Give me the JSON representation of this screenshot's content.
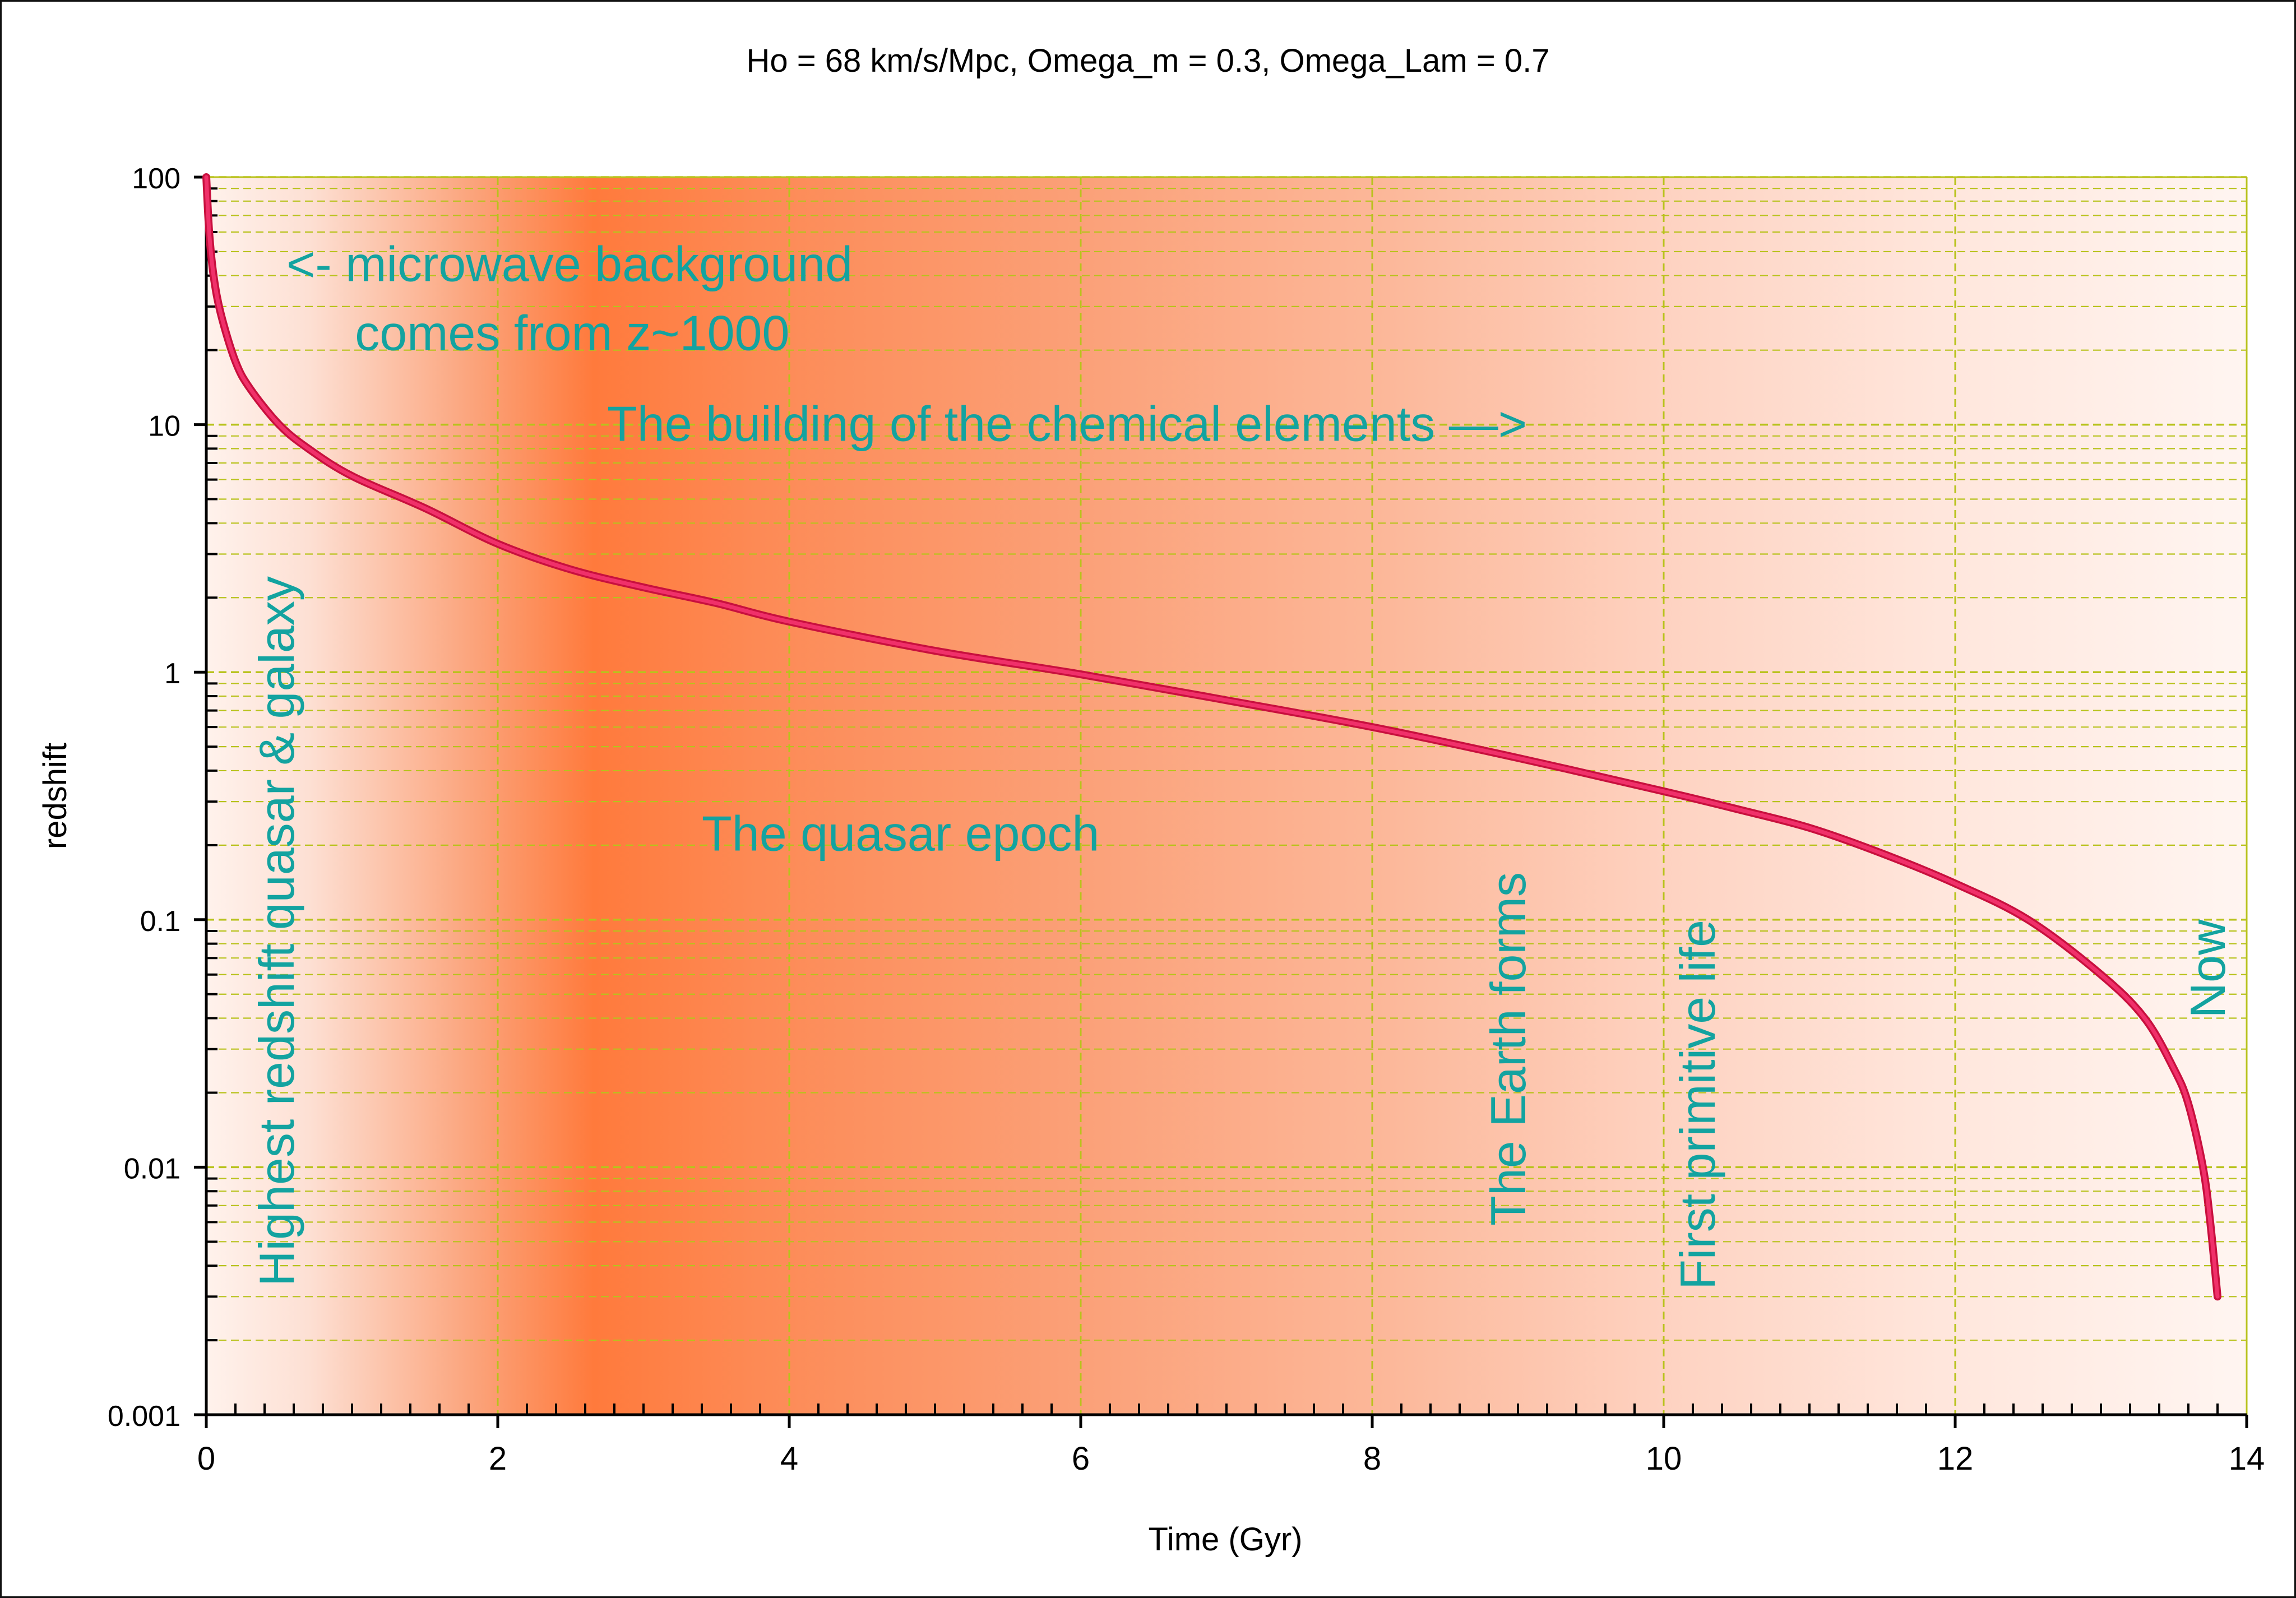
{
  "chart_data": {
    "type": "line",
    "title": "Ho = 68 km/s/Mpc, Omega_m = 0.3, Omega_Lam = 0.7",
    "xlabel": "Time (Gyr)",
    "ylabel": "redshift",
    "xlim": [
      0,
      14
    ],
    "ylim": [
      0.001,
      100
    ],
    "yscale": "log",
    "grid": true,
    "x_ticks": [
      "0",
      "2",
      "4",
      "6",
      "8",
      "10",
      "12",
      "14"
    ],
    "y_ticks": [
      "0.001",
      "0.01",
      "0.1",
      "1",
      "10",
      "100"
    ],
    "series": [
      {
        "color": "#e8174f",
        "points": [
          [
            0.0,
            100
          ],
          [
            0.02,
            60
          ],
          [
            0.05,
            40
          ],
          [
            0.1,
            28
          ],
          [
            0.2,
            18
          ],
          [
            0.3,
            14
          ],
          [
            0.5,
            10
          ],
          [
            0.7,
            8
          ],
          [
            1.0,
            6.2
          ],
          [
            1.5,
            4.6
          ],
          [
            2.0,
            3.3
          ],
          [
            2.5,
            2.6
          ],
          [
            3.0,
            2.2
          ],
          [
            3.5,
            1.9
          ],
          [
            4.0,
            1.6
          ],
          [
            5.0,
            1.22
          ],
          [
            6.0,
            0.98
          ],
          [
            7.0,
            0.77
          ],
          [
            8.0,
            0.6
          ],
          [
            9.0,
            0.45
          ],
          [
            10.0,
            0.33
          ],
          [
            10.5,
            0.28
          ],
          [
            11.0,
            0.235
          ],
          [
            11.5,
            0.185
          ],
          [
            12.0,
            0.14
          ],
          [
            12.5,
            0.1
          ],
          [
            13.0,
            0.06
          ],
          [
            13.3,
            0.04
          ],
          [
            13.5,
            0.025
          ],
          [
            13.6,
            0.018
          ],
          [
            13.7,
            0.01
          ],
          [
            13.75,
            0.006
          ],
          [
            13.8,
            0.003
          ]
        ]
      }
    ],
    "annotations": [
      {
        "text": "<- microwave background",
        "x": 0.55,
        "y": 38
      },
      {
        "text": "comes from z~1000",
        "x": 1.02,
        "y": 20
      },
      {
        "text": "The building of the chemical elements —>",
        "x": 2.75,
        "y": 8.6
      },
      {
        "text": "The quasar epoch",
        "x": 3.4,
        "y": 0.19
      },
      {
        "text": "Highest redshift quasar & galaxy",
        "x": 0.6,
        "y": 0.0033,
        "rotated": true
      },
      {
        "text": "The Earth forms",
        "x": 9.05,
        "y": 0.0058,
        "rotated": true
      },
      {
        "text": "First primitive life",
        "x": 10.35,
        "y": 0.0032,
        "rotated": true
      },
      {
        "text": "Now",
        "x": 13.85,
        "y": 0.04,
        "rotated": true
      }
    ],
    "colors": {
      "curve": "#e8174f",
      "annotation_text": "#13a3a0",
      "grid": "#b8c21c",
      "background_peak": "#ff7a3c",
      "background_light": "#fff2ec"
    }
  }
}
